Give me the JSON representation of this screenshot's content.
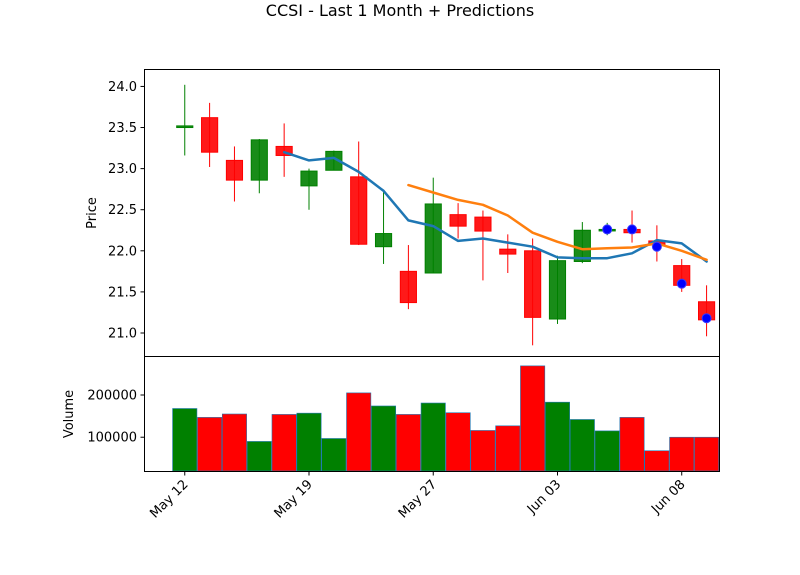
{
  "chart_data": {
    "type": "candlestick",
    "title": "CCSI - Last 1 Month + Predictions",
    "price_panel": {
      "ylabel": "Price",
      "ylim": [
        20.72,
        24.2
      ],
      "yticks": [
        "21.0",
        "21.5",
        "22.0",
        "22.5",
        "23.0",
        "23.5",
        "24.0"
      ],
      "ytick_values": [
        21.0,
        21.5,
        22.0,
        22.5,
        23.0,
        23.5,
        24.0
      ]
    },
    "volume_panel": {
      "ylabel": "Volume",
      "ylim": [
        20000,
        290000
      ],
      "yticks": [
        "100000",
        "200000"
      ],
      "ytick_values": [
        100000,
        200000
      ]
    },
    "x_range": [
      -1.6,
      21.5
    ],
    "xticks": [
      "May 12",
      "May 19",
      "May 27",
      "Jun 03",
      "Jun 08"
    ],
    "xtick_positions": [
      0,
      5,
      10,
      15,
      20
    ],
    "candles": [
      {
        "o": 23.5,
        "h": 24.02,
        "l": 23.16,
        "c": 23.52,
        "v": 168000
      },
      {
        "o": 23.62,
        "h": 23.8,
        "l": 23.02,
        "c": 23.2,
        "v": 147000
      },
      {
        "o": 23.1,
        "h": 23.27,
        "l": 22.6,
        "c": 22.86,
        "v": 155000
      },
      {
        "o": 22.86,
        "h": 23.36,
        "l": 22.7,
        "c": 23.35,
        "v": 90000
      },
      {
        "o": 23.27,
        "h": 23.55,
        "l": 22.9,
        "c": 23.16,
        "v": 154000
      },
      {
        "o": 22.79,
        "h": 23.0,
        "l": 22.5,
        "c": 22.97,
        "v": 157000
      },
      {
        "o": 22.98,
        "h": 23.22,
        "l": 22.98,
        "c": 23.21,
        "v": 97000
      },
      {
        "o": 22.9,
        "h": 23.33,
        "l": 22.07,
        "c": 22.08,
        "v": 205000
      },
      {
        "o": 22.05,
        "h": 22.72,
        "l": 21.84,
        "c": 22.21,
        "v": 174000
      },
      {
        "o": 21.75,
        "h": 22.07,
        "l": 21.29,
        "c": 21.37,
        "v": 154000
      },
      {
        "o": 21.73,
        "h": 22.89,
        "l": 21.73,
        "c": 22.57,
        "v": 181000
      },
      {
        "o": 22.44,
        "h": 22.58,
        "l": 22.15,
        "c": 22.3,
        "v": 158000
      },
      {
        "o": 22.41,
        "h": 22.49,
        "l": 21.64,
        "c": 22.24,
        "v": 116000
      },
      {
        "o": 22.02,
        "h": 22.2,
        "l": 21.73,
        "c": 21.96,
        "v": 127000
      },
      {
        "o": 22.0,
        "h": 22.15,
        "l": 20.85,
        "c": 21.19,
        "v": 269000
      },
      {
        "o": 21.17,
        "h": 21.94,
        "l": 21.11,
        "c": 21.88,
        "v": 183000
      },
      {
        "o": 21.87,
        "h": 22.35,
        "l": 21.85,
        "c": 22.25,
        "v": 142000
      },
      {
        "o": 22.26,
        "h": 22.34,
        "l": 22.19,
        "c": 22.26,
        "v": 115000
      },
      {
        "o": 22.26,
        "h": 22.49,
        "l": 22.1,
        "c": 22.22,
        "v": 147000
      },
      {
        "o": 22.12,
        "h": 22.31,
        "l": 21.87,
        "c": 22.07,
        "v": 68000
      },
      {
        "o": 21.82,
        "h": 21.9,
        "l": 21.5,
        "c": 21.58,
        "v": 100000
      },
      {
        "o": 21.38,
        "h": 21.58,
        "l": 20.96,
        "c": 21.16,
        "v": 100000
      }
    ],
    "predictions": [
      {
        "x": 17,
        "y": 22.26
      },
      {
        "x": 18,
        "y": 22.26
      },
      {
        "x": 19,
        "y": 22.05
      },
      {
        "x": 20,
        "y": 21.6
      },
      {
        "x": 21,
        "y": 21.18
      }
    ],
    "series": [
      {
        "color": "#1f77b4",
        "x": [
          4,
          5,
          6,
          7,
          8,
          9,
          10,
          11,
          12,
          13,
          14,
          15,
          16,
          17,
          18,
          19,
          20,
          21
        ],
        "values": [
          23.2,
          23.1,
          23.13,
          22.96,
          22.73,
          22.37,
          22.3,
          22.12,
          22.15,
          22.1,
          22.05,
          21.92,
          21.91,
          21.91,
          21.97,
          22.13,
          22.09,
          21.87
        ]
      },
      {
        "color": "#ff7f0e",
        "x": [
          9,
          10,
          11,
          12,
          13,
          14,
          15,
          16,
          17,
          18,
          19,
          20,
          21
        ],
        "values": [
          22.8,
          22.71,
          22.62,
          22.56,
          22.43,
          22.22,
          22.11,
          22.02,
          22.03,
          22.04,
          22.09,
          22.0,
          21.89
        ]
      }
    ],
    "colors": {
      "up": "#008000",
      "down": "#ff0000",
      "prediction": "#0000ff",
      "volume_edge": "#1f77b4"
    },
    "grid": false
  }
}
